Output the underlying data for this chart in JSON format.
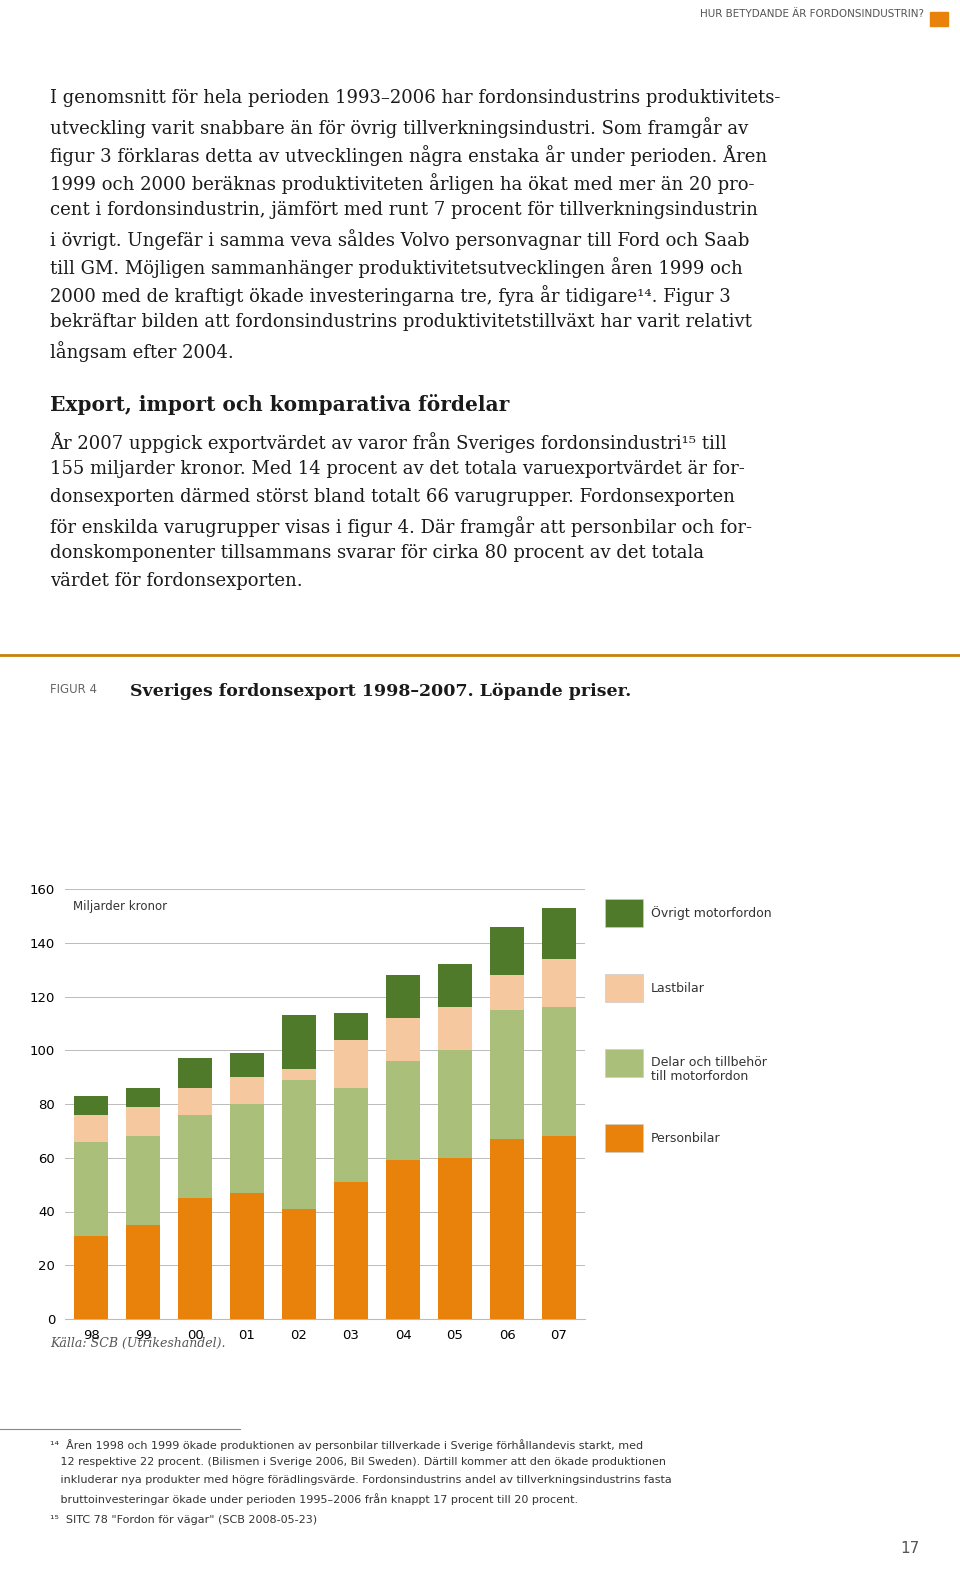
{
  "title_label": "FIGUR 4",
  "title_main": "Sveriges fordonsexport 1998–2007. Löpande priser.",
  "ylabel": "Miljarder kronor",
  "source": "Källa: SCB (Utrikeshandel).",
  "years": [
    "98",
    "99",
    "00",
    "01",
    "02",
    "03",
    "04",
    "05",
    "06",
    "07"
  ],
  "personbilar": [
    31,
    35,
    45,
    47,
    41,
    51,
    59,
    60,
    67,
    68
  ],
  "delar_tillbehor": [
    35,
    33,
    31,
    33,
    48,
    35,
    37,
    40,
    48,
    48
  ],
  "lastbilar": [
    10,
    11,
    10,
    10,
    4,
    18,
    16,
    16,
    13,
    18
  ],
  "ovrigt": [
    7,
    7,
    11,
    9,
    20,
    10,
    16,
    16,
    18,
    19
  ],
  "colors": {
    "personbilar": "#E8820A",
    "delar_tillbehor": "#AABF7A",
    "lastbilar": "#F5C8A0",
    "ovrigt": "#4E7A2A"
  },
  "ylim": [
    0,
    160
  ],
  "yticks": [
    0,
    20,
    40,
    60,
    80,
    100,
    120,
    140,
    160
  ],
  "background_color": "#FFFFFF",
  "grid_color": "#BBBBBB",
  "orange_line_color": "#C8820A",
  "figsize": [
    9.6,
    15.84
  ],
  "dpi": 100
}
